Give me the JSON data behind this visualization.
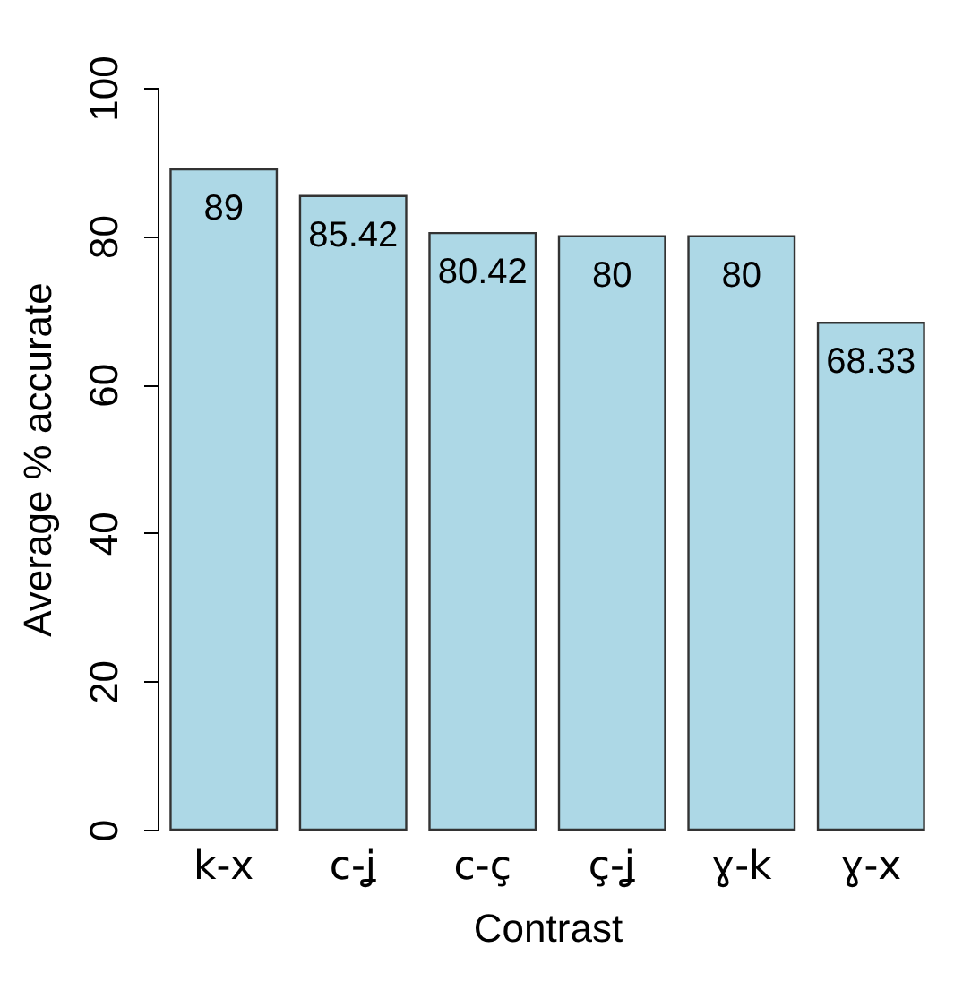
{
  "chart_data": {
    "type": "bar",
    "xlabel": "Contrast",
    "ylabel": "Average % accurate",
    "categories": [
      "k-x",
      "c-ʝ",
      "c-ç",
      "ç-ʝ",
      "ɣ-k",
      "ɣ-x"
    ],
    "values": [
      89,
      85.42,
      80.42,
      80,
      80,
      68.33
    ],
    "color": "#add8e6",
    "ylim": [
      0,
      100
    ],
    "yticks": [
      0,
      20,
      40,
      60,
      80,
      100
    ],
    "data_labels": true
  }
}
